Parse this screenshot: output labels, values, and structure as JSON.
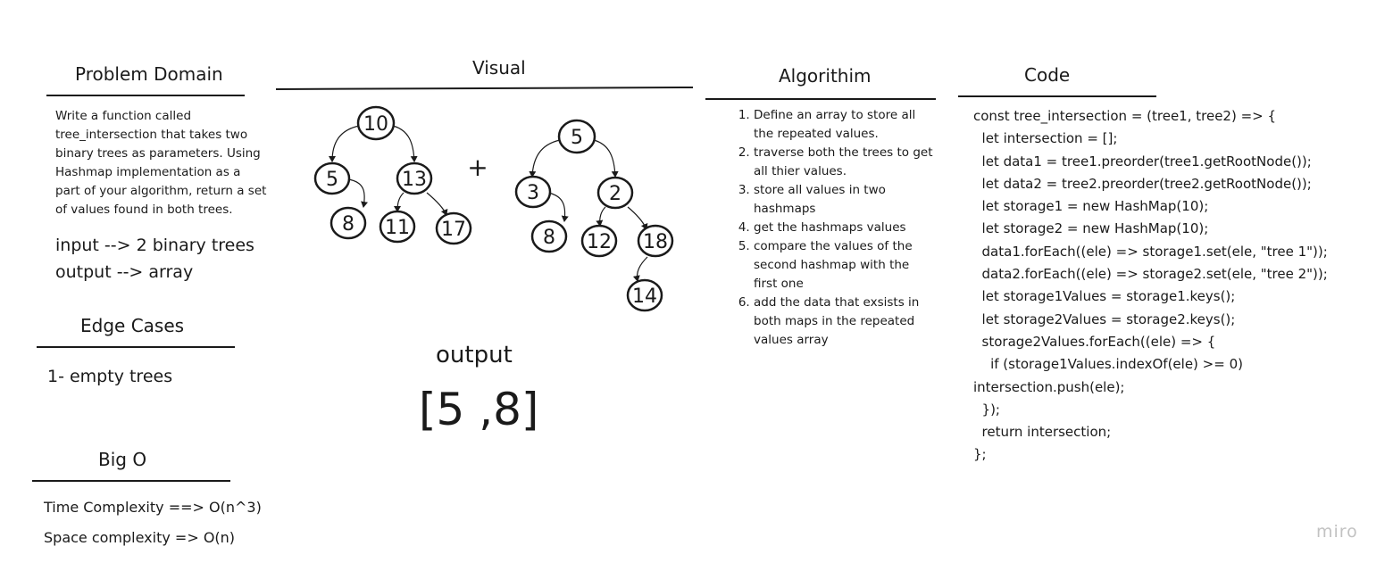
{
  "problem_domain": {
    "heading": "Problem Domain",
    "lines": [
      "Write a function called",
      "tree_intersection that takes two",
      "binary trees as parameters. Using",
      "Hashmap implementation as a",
      "part of your algorithm, return a set",
      "of values found in both trees."
    ],
    "input": "input --> 2 binary trees",
    "output": "output --> array"
  },
  "edge_cases": {
    "heading": "Edge Cases",
    "item": "1- empty trees"
  },
  "big_o": {
    "heading": "Big O",
    "time": "Time Complexity ==> O(n^3)",
    "space": "Space complexity => O(n)"
  },
  "visual": {
    "heading": "Visual",
    "plus": "+",
    "tree1": [
      "10",
      "5",
      "13",
      "8",
      "11",
      "17"
    ],
    "tree2": [
      "5",
      "3",
      "2",
      "8",
      "12",
      "18",
      "14"
    ],
    "output_label": "output",
    "output_value": "[5 ,8]"
  },
  "algorithm": {
    "heading": "Algorithim",
    "steps": [
      "Define an array to store all the repeated values.",
      "traverse both the trees to get all thier values.",
      "store all values in two hashmaps",
      "get the hashmaps values",
      "compare the values of the second hashmap with the first one",
      "add the data that exsists in both maps in the repeated values array"
    ]
  },
  "code": {
    "heading": "Code",
    "lines": [
      "const tree_intersection = (tree1, tree2) => {",
      "  let intersection = [];",
      "  let data1 = tree1.preorder(tree1.getRootNode());",
      "  let data2 = tree2.preorder(tree2.getRootNode());",
      "  let storage1 = new HashMap(10);",
      "  let storage2 = new HashMap(10);",
      "  data1.forEach((ele) => storage1.set(ele, \"tree 1\"));",
      "  data2.forEach((ele) => storage2.set(ele, \"tree 2\"));",
      "  let storage1Values = storage1.keys();",
      "  let storage2Values = storage2.keys();",
      "  storage2Values.forEach((ele) => {",
      "    if (storage1Values.indexOf(ele) >= 0)",
      "intersection.push(ele);",
      "  });",
      "  return intersection;",
      "};"
    ]
  },
  "watermark": "miro"
}
